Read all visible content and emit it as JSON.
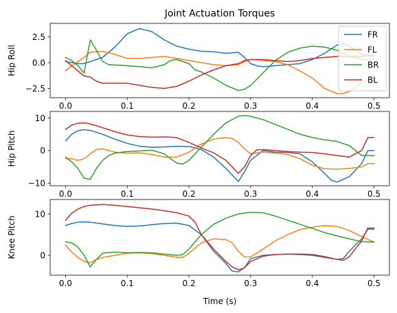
{
  "chart_data": {
    "type": "line",
    "title": "Joint Actuation Torques",
    "xlabel": "Time (s)",
    "xlim": [
      -0.025,
      0.525
    ],
    "xticks": [
      0.0,
      0.1,
      0.2,
      0.3,
      0.4,
      0.5
    ],
    "xtick_labels": [
      "0.0",
      "0.1",
      "0.2",
      "0.3",
      "0.4",
      "0.5"
    ],
    "legend": {
      "entries": [
        "FR",
        "FL",
        "BR",
        "BL"
      ],
      "location": "upper right"
    },
    "colors": {
      "FR": "#1f77b4",
      "FL": "#ff7f0e",
      "BR": "#2ca02c",
      "BL": "#d62728"
    },
    "subplots": [
      {
        "ylabel": "Hip Roll",
        "ylim": [
          -3.4,
          3.8
        ],
        "yticks": [
          -2.5,
          0.0,
          2.5
        ],
        "ytick_labels": [
          "−2.5",
          "0.0",
          "2.5"
        ],
        "series": [
          {
            "name": "FR",
            "x": [
              0,
              0.02,
              0.03,
              0.04,
              0.06,
              0.08,
              0.1,
              0.12,
              0.14,
              0.16,
              0.18,
              0.2,
              0.22,
              0.24,
              0.26,
              0.28,
              0.29,
              0.3,
              0.31,
              0.32,
              0.34,
              0.36,
              0.38,
              0.4,
              0.42,
              0.44,
              0.45,
              0.46,
              0.48,
              0.5
            ],
            "y": [
              0.1,
              -0.1,
              -0.1,
              0.1,
              0.5,
              1.5,
              2.8,
              3.3,
              3.0,
              2.2,
              1.6,
              1.3,
              1.1,
              1.05,
              0.9,
              1.0,
              0.5,
              -0.1,
              -0.3,
              -0.4,
              -0.3,
              -0.2,
              -0.1,
              0.3,
              0.9,
              1.7,
              1.8,
              1.6,
              0.8,
              0.7
            ]
          },
          {
            "name": "FL",
            "x": [
              0,
              0.01,
              0.02,
              0.03,
              0.04,
              0.06,
              0.08,
              0.1,
              0.12,
              0.14,
              0.16,
              0.18,
              0.2,
              0.22,
              0.24,
              0.26,
              0.28,
              0.29,
              0.3,
              0.32,
              0.34,
              0.36,
              0.38,
              0.4,
              0.42,
              0.44,
              0.45,
              0.46,
              0.48,
              0.5
            ],
            "y": [
              -0.8,
              -0.3,
              0.1,
              0.5,
              1.0,
              1.1,
              0.8,
              0.4,
              0.4,
              0.5,
              0.6,
              0.4,
              0.2,
              0.0,
              -0.2,
              -0.3,
              -0.2,
              0.1,
              0.3,
              0.2,
              0.1,
              -0.2,
              -0.8,
              -1.5,
              -2.5,
              -3.0,
              -3.0,
              -2.8,
              -2.0,
              -1.2
            ]
          },
          {
            "name": "BR",
            "x": [
              0,
              0.01,
              0.02,
              0.03,
              0.04,
              0.05,
              0.06,
              0.07,
              0.1,
              0.12,
              0.14,
              0.16,
              0.17,
              0.18,
              0.19,
              0.2,
              0.21,
              0.22,
              0.24,
              0.26,
              0.28,
              0.29,
              0.3,
              0.32,
              0.34,
              0.36,
              0.38,
              0.4,
              0.42,
              0.44,
              0.46,
              0.48,
              0.5
            ],
            "y": [
              0.5,
              0.2,
              -0.3,
              -1.0,
              2.2,
              1.2,
              0.1,
              -0.2,
              -0.3,
              -0.4,
              -0.5,
              -0.2,
              0.2,
              0.3,
              0.1,
              -0.1,
              -0.7,
              -0.9,
              -1.5,
              -2.2,
              -2.7,
              -2.6,
              -2.2,
              -1.0,
              0.2,
              1.0,
              1.4,
              1.6,
              1.5,
              1.2,
              0.6,
              0.3,
              0.3
            ]
          },
          {
            "name": "BL",
            "x": [
              0,
              0.01,
              0.02,
              0.03,
              0.04,
              0.05,
              0.06,
              0.08,
              0.1,
              0.12,
              0.14,
              0.16,
              0.18,
              0.2,
              0.22,
              0.24,
              0.26,
              0.28,
              0.29,
              0.3,
              0.32,
              0.34,
              0.36,
              0.38,
              0.4,
              0.42,
              0.44,
              0.46,
              0.48,
              0.5
            ],
            "y": [
              0.2,
              -0.3,
              -0.8,
              -1.3,
              -1.4,
              -1.8,
              -2.0,
              -2.0,
              -2.0,
              -2.2,
              -2.4,
              -2.5,
              -2.3,
              -1.8,
              -1.2,
              -0.7,
              -0.3,
              -0.1,
              0.2,
              0.3,
              0.3,
              0.2,
              0.1,
              0.2,
              0.4,
              0.5,
              0.6,
              0.6,
              0.6,
              0.7
            ]
          }
        ]
      },
      {
        "ylabel": "Hip Pitch",
        "ylim": [
          -10.8,
          12
        ],
        "yticks": [
          -10,
          0,
          10
        ],
        "ytick_labels": [
          "−10",
          "0",
          "10"
        ],
        "series": [
          {
            "name": "FR",
            "x": [
              0,
              0.01,
              0.02,
              0.03,
              0.04,
              0.06,
              0.08,
              0.1,
              0.12,
              0.14,
              0.16,
              0.18,
              0.2,
              0.22,
              0.24,
              0.26,
              0.28,
              0.29,
              0.3,
              0.32,
              0.34,
              0.36,
              0.38,
              0.4,
              0.42,
              0.43,
              0.44,
              0.46,
              0.48,
              0.49,
              0.5
            ],
            "y": [
              3,
              5,
              6.1,
              6.4,
              6.2,
              5.0,
              3.5,
              2.2,
              1.3,
              1.0,
              1.1,
              1.3,
              1.2,
              0.3,
              -2.0,
              -5.5,
              -9.5,
              -6.5,
              -3,
              0,
              -0.5,
              -0.6,
              -1.0,
              -3.5,
              -7.0,
              -9.0,
              -9.7,
              -8.0,
              -4.0,
              0,
              0
            ]
          },
          {
            "name": "FL",
            "x": [
              0,
              0.01,
              0.02,
              0.03,
              0.04,
              0.05,
              0.06,
              0.08,
              0.1,
              0.12,
              0.14,
              0.16,
              0.18,
              0.2,
              0.22,
              0.24,
              0.26,
              0.27,
              0.28,
              0.29,
              0.3,
              0.32,
              0.34,
              0.36,
              0.38,
              0.4,
              0.42,
              0.44,
              0.46,
              0.48,
              0.49,
              0.5
            ],
            "y": [
              -2.5,
              -2.5,
              -3.0,
              -2.5,
              -1.0,
              0.3,
              0.5,
              -0.5,
              -0.8,
              -0.7,
              -1.2,
              -2.0,
              -2.0,
              -0.5,
              2.0,
              3.5,
              4.0,
              3.7,
              2.5,
              0.5,
              -1.0,
              -0.5,
              -0.8,
              -1.2,
              -2.5,
              -4.5,
              -5.6,
              -5.7,
              -5.5,
              -5.0,
              -4.0,
              -4.0
            ]
          },
          {
            "name": "BR",
            "x": [
              0,
              0.01,
              0.02,
              0.03,
              0.04,
              0.05,
              0.06,
              0.07,
              0.08,
              0.1,
              0.12,
              0.14,
              0.16,
              0.17,
              0.18,
              0.19,
              0.2,
              0.22,
              0.24,
              0.26,
              0.28,
              0.29,
              0.3,
              0.32,
              0.34,
              0.36,
              0.38,
              0.4,
              0.42,
              0.44,
              0.46,
              0.48,
              0.5
            ],
            "y": [
              -2.0,
              -3.5,
              -5.5,
              -8.5,
              -8.8,
              -5.5,
              -3.0,
              -1.5,
              -0.8,
              -0.3,
              -0.1,
              0.1,
              -1.0,
              -2.5,
              -3.8,
              -4.2,
              -3.0,
              1.0,
              5.0,
              8.5,
              10.5,
              10.8,
              10.5,
              9.5,
              8.0,
              6.5,
              5.0,
              4.0,
              3.3,
              2.8,
              1.5,
              -1.5,
              -1.5
            ]
          },
          {
            "name": "BL",
            "x": [
              0,
              0.01,
              0.02,
              0.03,
              0.04,
              0.06,
              0.08,
              0.1,
              0.12,
              0.14,
              0.16,
              0.18,
              0.2,
              0.22,
              0.24,
              0.26,
              0.28,
              0.29,
              0.3,
              0.31,
              0.32,
              0.34,
              0.36,
              0.38,
              0.4,
              0.42,
              0.44,
              0.46,
              0.48,
              0.49,
              0.5
            ],
            "y": [
              6.5,
              7.8,
              8.4,
              8.5,
              8.2,
              7.0,
              5.8,
              4.8,
              4.3,
              4.1,
              4.2,
              4.0,
              2.5,
              0.8,
              -0.7,
              -3.0,
              -7.0,
              -5.0,
              -1.5,
              0.2,
              0.3,
              0.0,
              -0.3,
              -0.5,
              -0.6,
              -1.0,
              -1.5,
              -2.0,
              0.0,
              4.0,
              4.0
            ]
          }
        ]
      },
      {
        "ylabel": "Knee Pitch",
        "ylim": [
          -4.8,
          13.5
        ],
        "yticks": [
          0,
          10
        ],
        "ytick_labels": [
          "0",
          "10"
        ],
        "series": [
          {
            "name": "FR",
            "x": [
              0,
              0.01,
              0.02,
              0.03,
              0.04,
              0.06,
              0.08,
              0.1,
              0.12,
              0.14,
              0.16,
              0.18,
              0.2,
              0.22,
              0.24,
              0.26,
              0.27,
              0.28,
              0.29,
              0.3,
              0.32,
              0.34,
              0.36,
              0.38,
              0.4,
              0.42,
              0.44,
              0.45,
              0.46,
              0.48,
              0.49,
              0.5
            ],
            "y": [
              7.2,
              7.7,
              8.0,
              8.1,
              8.0,
              7.6,
              7.2,
              7.0,
              7.1,
              7.4,
              7.7,
              7.8,
              7.2,
              5.0,
              1.0,
              -2.0,
              -3.8,
              -4.0,
              -3.0,
              -0.8,
              0.0,
              0.2,
              0.3,
              0.2,
              0.0,
              -0.5,
              -1.0,
              -0.8,
              1.0,
              4.0,
              6.3,
              6.3
            ]
          },
          {
            "name": "FL",
            "x": [
              0,
              0.01,
              0.02,
              0.03,
              0.04,
              0.05,
              0.06,
              0.08,
              0.1,
              0.12,
              0.14,
              0.16,
              0.18,
              0.19,
              0.2,
              0.22,
              0.24,
              0.26,
              0.27,
              0.28,
              0.29,
              0.3,
              0.32,
              0.34,
              0.36,
              0.38,
              0.4,
              0.42,
              0.44,
              0.46,
              0.48,
              0.5
            ],
            "y": [
              2.5,
              0.8,
              -0.5,
              -1.5,
              -1.8,
              -1.0,
              -0.5,
              0.0,
              0.5,
              0.6,
              0.4,
              0.0,
              -0.5,
              -0.5,
              0.5,
              3.0,
              4.0,
              3.8,
              3.0,
              1.0,
              -0.4,
              -0.4,
              1.5,
              3.5,
              5.0,
              6.2,
              6.8,
              7.2,
              7.0,
              6.0,
              4.5,
              3.2
            ]
          },
          {
            "name": "BR",
            "x": [
              0,
              0.01,
              0.02,
              0.03,
              0.04,
              0.05,
              0.06,
              0.08,
              0.1,
              0.12,
              0.14,
              0.16,
              0.18,
              0.19,
              0.2,
              0.22,
              0.24,
              0.26,
              0.28,
              0.3,
              0.32,
              0.34,
              0.36,
              0.38,
              0.4,
              0.42,
              0.44,
              0.46,
              0.48,
              0.5
            ],
            "y": [
              3.3,
              3.0,
              2.0,
              0.0,
              -2.8,
              -1.0,
              0.5,
              0.8,
              0.6,
              0.7,
              0.6,
              0.3,
              0.0,
              0.2,
              1.5,
              5.0,
              7.5,
              9.0,
              10.0,
              10.4,
              10.3,
              9.5,
              8.5,
              7.5,
              6.5,
              5.5,
              4.7,
              4.0,
              3.3,
              3.2
            ]
          },
          {
            "name": "BL",
            "x": [
              0,
              0.01,
              0.02,
              0.03,
              0.04,
              0.06,
              0.08,
              0.1,
              0.12,
              0.14,
              0.16,
              0.18,
              0.2,
              0.21,
              0.22,
              0.24,
              0.26,
              0.27,
              0.28,
              0.29,
              0.3,
              0.32,
              0.34,
              0.36,
              0.38,
              0.4,
              0.42,
              0.44,
              0.45,
              0.46,
              0.48,
              0.49,
              0.5
            ],
            "y": [
              8.5,
              10.2,
              11.2,
              11.8,
              12.1,
              12.3,
              12.1,
              11.8,
              11.5,
              11.2,
              10.8,
              10.3,
              9.5,
              8.0,
              5.0,
              1.5,
              -1.5,
              -2.8,
              -3.5,
              -3.0,
              -1.5,
              -0.2,
              0.2,
              0.3,
              0.3,
              0.2,
              -0.3,
              -1.0,
              -1.2,
              -0.3,
              3.5,
              6.6,
              6.6
            ]
          }
        ]
      }
    ]
  }
}
